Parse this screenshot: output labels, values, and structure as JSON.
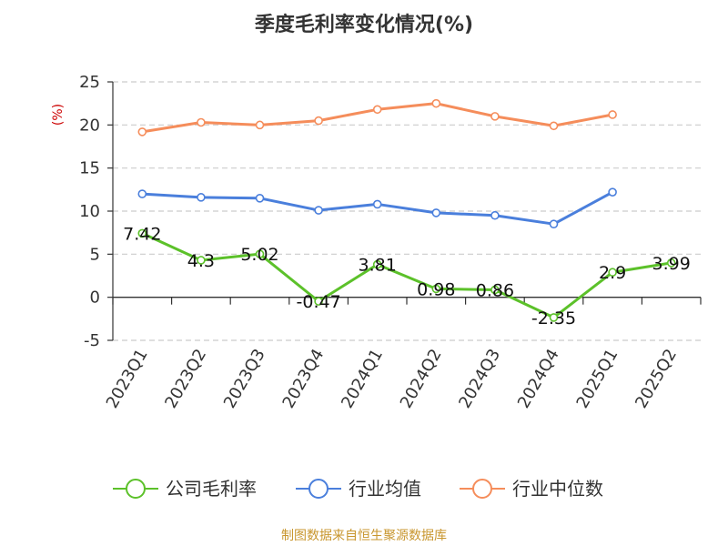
{
  "chart_data": {
    "type": "line",
    "title": "季度毛利率变化情况(%)",
    "y_unit": "(%)",
    "categories": [
      "2023Q1",
      "2023Q2",
      "2023Q3",
      "2023Q4",
      "2024Q1",
      "2024Q2",
      "2024Q3",
      "2024Q4",
      "2025Q1",
      "2025Q2"
    ],
    "ylim": [
      -5,
      25
    ],
    "yticks": [
      25,
      20,
      15,
      10,
      5,
      0,
      -5
    ],
    "ytick_labels": [
      "25",
      "20",
      "15",
      "10",
      "5",
      "0",
      "-5"
    ],
    "grid": true,
    "legend_position": "bottom",
    "series": [
      {
        "name": "公司毛利率",
        "color": "#5cc12a",
        "values": [
          7.42,
          4.3,
          5.02,
          -0.47,
          3.81,
          0.98,
          0.86,
          -2.35,
          2.9,
          3.99
        ],
        "labels": [
          "7.42",
          "4.3",
          "5.02",
          "-0.47",
          "3.81",
          "0.98",
          "0.86",
          "-2.35",
          "2.9",
          "3.99"
        ]
      },
      {
        "name": "行业均值",
        "color": "#4a7fdc",
        "values": [
          12.0,
          11.6,
          11.5,
          10.1,
          10.8,
          9.8,
          9.5,
          8.5,
          12.2,
          null
        ]
      },
      {
        "name": "行业中位数",
        "color": "#f58d5b",
        "values": [
          19.2,
          20.3,
          20.0,
          20.5,
          21.8,
          22.5,
          21.0,
          19.9,
          21.2,
          null
        ]
      }
    ]
  },
  "source": {
    "text": "制图数据来自恒生聚源数据库",
    "color": "#c8962e"
  },
  "colors": {
    "unit": "#cc0000",
    "grid": "#cccccc",
    "axis": "#333333"
  }
}
